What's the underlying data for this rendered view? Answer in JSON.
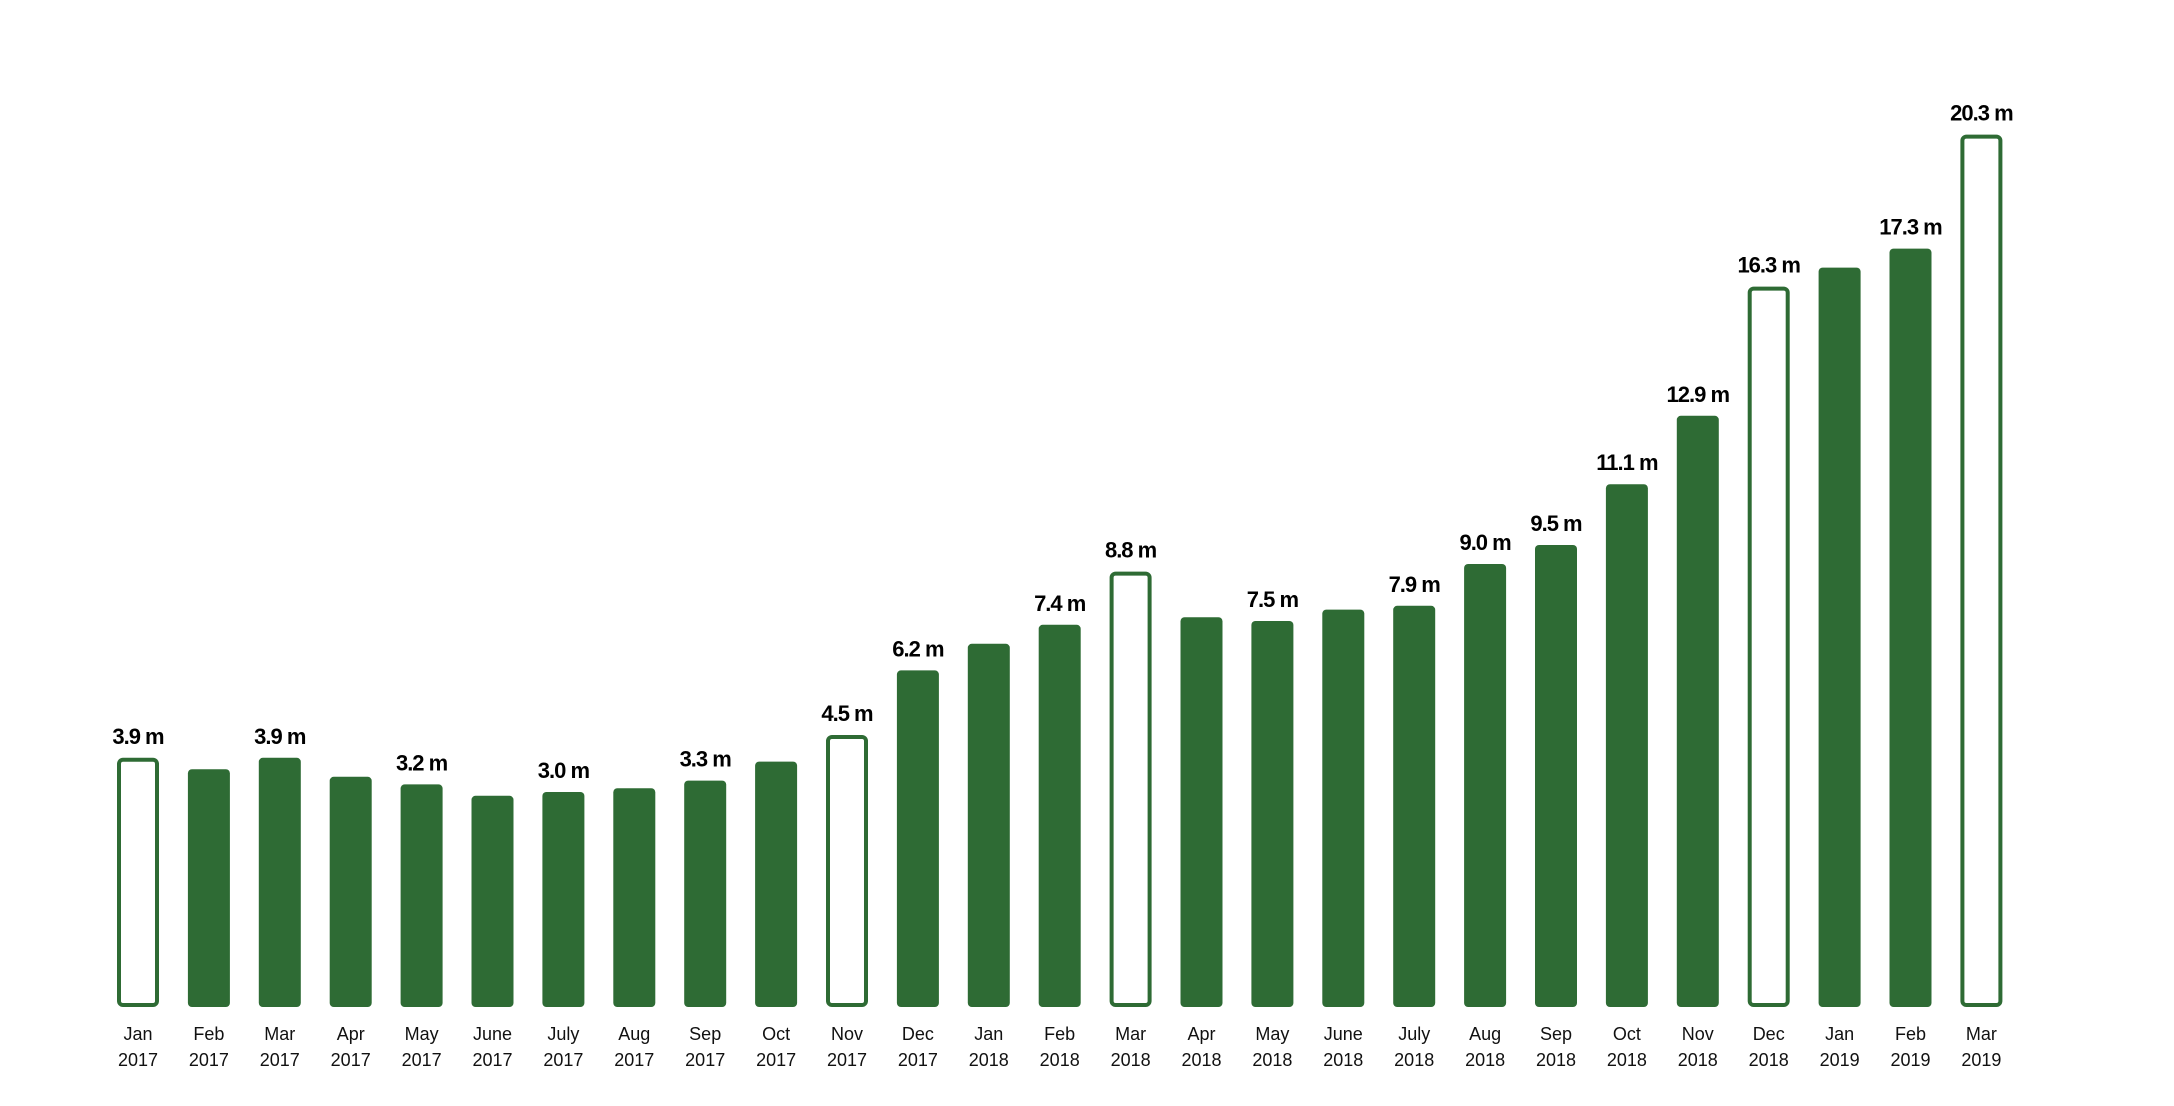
{
  "chart_data": {
    "type": "bar",
    "title": "",
    "xlabel": "",
    "ylabel": "",
    "unit_suffix": " m",
    "bar_color": "#2e6b34",
    "categories": [
      {
        "month": "Jan",
        "year": "2017"
      },
      {
        "month": "Feb",
        "year": "2017"
      },
      {
        "month": "Mar",
        "year": "2017"
      },
      {
        "month": "Apr",
        "year": "2017"
      },
      {
        "month": "May",
        "year": "2017"
      },
      {
        "month": "June",
        "year": "2017"
      },
      {
        "month": "July",
        "year": "2017"
      },
      {
        "month": "Aug",
        "year": "2017"
      },
      {
        "month": "Sep",
        "year": "2017"
      },
      {
        "month": "Oct",
        "year": "2017"
      },
      {
        "month": "Nov",
        "year": "2017"
      },
      {
        "month": "Dec",
        "year": "2017"
      },
      {
        "month": "Jan",
        "year": "2018"
      },
      {
        "month": "Feb",
        "year": "2018"
      },
      {
        "month": "Mar",
        "year": "2018"
      },
      {
        "month": "Apr",
        "year": "2018"
      },
      {
        "month": "May",
        "year": "2018"
      },
      {
        "month": "June",
        "year": "2018"
      },
      {
        "month": "July",
        "year": "2018"
      },
      {
        "month": "Aug",
        "year": "2018"
      },
      {
        "month": "Sep",
        "year": "2018"
      },
      {
        "month": "Oct",
        "year": "2018"
      },
      {
        "month": "Nov",
        "year": "2018"
      },
      {
        "month": "Dec",
        "year": "2018"
      },
      {
        "month": "Jan",
        "year": "2019"
      },
      {
        "month": "Feb",
        "year": "2019"
      },
      {
        "month": "Mar",
        "year": "2019"
      }
    ],
    "values": [
      3.9,
      3.6,
      3.9,
      3.4,
      3.2,
      2.9,
      3.0,
      3.1,
      3.3,
      3.8,
      4.5,
      6.2,
      6.9,
      7.4,
      8.8,
      7.6,
      7.5,
      7.8,
      7.9,
      9.0,
      9.5,
      11.1,
      12.9,
      16.3,
      16.8,
      17.3,
      20.3
    ],
    "data_labels": [
      "3.9 m",
      null,
      "3.9 m",
      null,
      "3.2 m",
      null,
      "3.0 m",
      null,
      "3.3 m",
      null,
      "4.5 m",
      "6.2 m",
      null,
      "7.4 m",
      "8.8 m",
      null,
      "7.5 m",
      null,
      "7.9 m",
      "9.0 m",
      "9.5 m",
      "11.1 m",
      "12.9 m",
      "16.3 m",
      null,
      "17.3 m",
      "20.3 m"
    ],
    "outlined": [
      true,
      false,
      false,
      false,
      false,
      false,
      false,
      false,
      false,
      false,
      true,
      false,
      false,
      false,
      true,
      false,
      false,
      false,
      false,
      false,
      false,
      false,
      false,
      true,
      false,
      false,
      true
    ],
    "grid": false,
    "legend": "none"
  }
}
